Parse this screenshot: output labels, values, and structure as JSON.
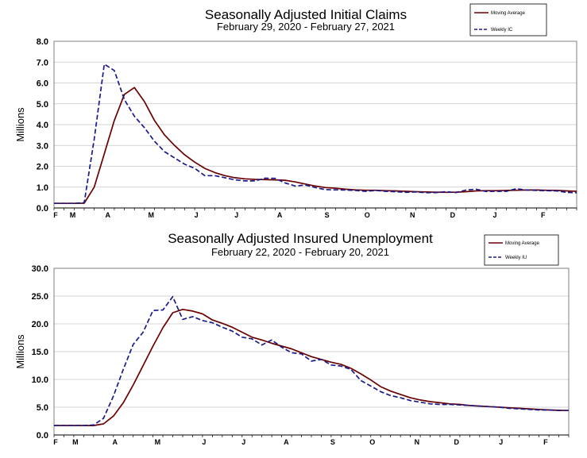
{
  "chart_data": [
    {
      "type": "line",
      "title": "Seasonally Adjusted Initial Claims",
      "subtitle": "February 29, 2020 - February 27, 2021",
      "ylabel": "Millions",
      "ylim": [
        0,
        8
      ],
      "yticks": [
        "0.0",
        "1.0",
        "2.0",
        "3.0",
        "4.0",
        "5.0",
        "6.0",
        "7.0",
        "8.0"
      ],
      "xticks": [
        {
          "label": "F",
          "week": 0
        },
        {
          "label": "M",
          "week": 1.7
        },
        {
          "label": "A",
          "week": 5.2
        },
        {
          "label": "M",
          "week": 9.5
        },
        {
          "label": "J",
          "week": 14
        },
        {
          "label": "J",
          "week": 18
        },
        {
          "label": "A",
          "week": 22.3
        },
        {
          "label": "S",
          "week": 27
        },
        {
          "label": "O",
          "week": 31
        },
        {
          "label": "N",
          "week": 35.5
        },
        {
          "label": "D",
          "week": 39.5
        },
        {
          "label": "J",
          "week": 43.7
        },
        {
          "label": "F",
          "week": 48.5
        }
      ],
      "weeks": 52,
      "series": [
        {
          "name": "Moving Average",
          "color": "#6b0000",
          "dash": false,
          "values": [
            0.22,
            0.22,
            0.22,
            0.23,
            1.0,
            2.6,
            4.2,
            5.45,
            5.78,
            5.1,
            4.2,
            3.5,
            3.0,
            2.55,
            2.2,
            1.9,
            1.7,
            1.55,
            1.45,
            1.4,
            1.37,
            1.36,
            1.35,
            1.33,
            1.25,
            1.15,
            1.05,
            0.98,
            0.95,
            0.9,
            0.87,
            0.85,
            0.85,
            0.83,
            0.82,
            0.8,
            0.78,
            0.77,
            0.76,
            0.75,
            0.76,
            0.78,
            0.82,
            0.83,
            0.83,
            0.84,
            0.85,
            0.86,
            0.86,
            0.85,
            0.84,
            0.82,
            0.8
          ]
        },
        {
          "name": "Weekly IC",
          "color": "#1a1a8c",
          "dash": true,
          "values": [
            0.22,
            0.22,
            0.22,
            0.25,
            3.3,
            6.9,
            6.6,
            5.2,
            4.4,
            3.85,
            3.2,
            2.7,
            2.4,
            2.1,
            1.9,
            1.55,
            1.55,
            1.45,
            1.35,
            1.3,
            1.3,
            1.43,
            1.42,
            1.2,
            1.05,
            1.1,
            0.98,
            0.88,
            0.87,
            0.86,
            0.84,
            0.8,
            0.84,
            0.8,
            0.78,
            0.75,
            0.77,
            0.73,
            0.74,
            0.78,
            0.74,
            0.86,
            0.9,
            0.79,
            0.8,
            0.8,
            0.92,
            0.86,
            0.84,
            0.83,
            0.82,
            0.75,
            0.73
          ]
        }
      ],
      "legend": [
        "Moving Average",
        "Weekly IC"
      ]
    },
    {
      "type": "line",
      "title": "Seasonally Adjusted Insured Unemployment",
      "subtitle": "February 22, 2020 - February 20, 2021",
      "ylabel": "Millions",
      "ylim": [
        0,
        30
      ],
      "yticks": [
        "0.0",
        "5.0",
        "10.0",
        "15.0",
        "20.0",
        "25.0",
        "30.0"
      ],
      "xticks": [
        {
          "label": "F",
          "week": 0
        },
        {
          "label": "M",
          "week": 2
        },
        {
          "label": "A",
          "week": 6
        },
        {
          "label": "M",
          "week": 10.3
        },
        {
          "label": "J",
          "week": 15
        },
        {
          "label": "J",
          "week": 19
        },
        {
          "label": "A",
          "week": 23.3
        },
        {
          "label": "S",
          "week": 28
        },
        {
          "label": "O",
          "week": 32
        },
        {
          "label": "N",
          "week": 36.5
        },
        {
          "label": "D",
          "week": 40.5
        },
        {
          "label": "J",
          "week": 45
        },
        {
          "label": "F",
          "week": 49.5
        }
      ],
      "weeks": 52,
      "series": [
        {
          "name": "Moving Average",
          "color": "#6b0000",
          "dash": false,
          "values": [
            1.7,
            1.7,
            1.7,
            1.7,
            1.7,
            2.0,
            3.4,
            5.8,
            9.0,
            12.5,
            16.0,
            19.3,
            22.0,
            22.6,
            22.3,
            21.8,
            20.7,
            20.1,
            19.4,
            18.5,
            17.6,
            17.1,
            16.5,
            16.0,
            15.5,
            14.8,
            14.1,
            13.6,
            13.1,
            12.7,
            12.0,
            11.0,
            9.9,
            8.7,
            7.9,
            7.3,
            6.7,
            6.3,
            6.0,
            5.8,
            5.6,
            5.5,
            5.3,
            5.2,
            5.1,
            5.0,
            4.9,
            4.8,
            4.7,
            4.6,
            4.5,
            4.45,
            4.4
          ]
        },
        {
          "name": "Weekly IU",
          "color": "#1a1a8c",
          "dash": true,
          "values": [
            1.7,
            1.7,
            1.7,
            1.7,
            1.8,
            3.0,
            7.0,
            11.8,
            16.3,
            18.5,
            22.4,
            22.5,
            24.9,
            20.8,
            21.3,
            20.6,
            20.2,
            19.4,
            18.7,
            17.6,
            17.3,
            16.2,
            17.1,
            15.8,
            14.8,
            14.6,
            13.3,
            13.6,
            12.6,
            12.4,
            11.8,
            9.8,
            8.8,
            7.8,
            7.1,
            6.7,
            6.2,
            5.9,
            5.6,
            5.5,
            5.5,
            5.4,
            5.3,
            5.2,
            5.1,
            5.0,
            4.8,
            4.7,
            4.6,
            4.5,
            4.5,
            4.4,
            4.4
          ]
        }
      ],
      "legend": [
        "Moving Average",
        "Weekly IU"
      ]
    }
  ]
}
